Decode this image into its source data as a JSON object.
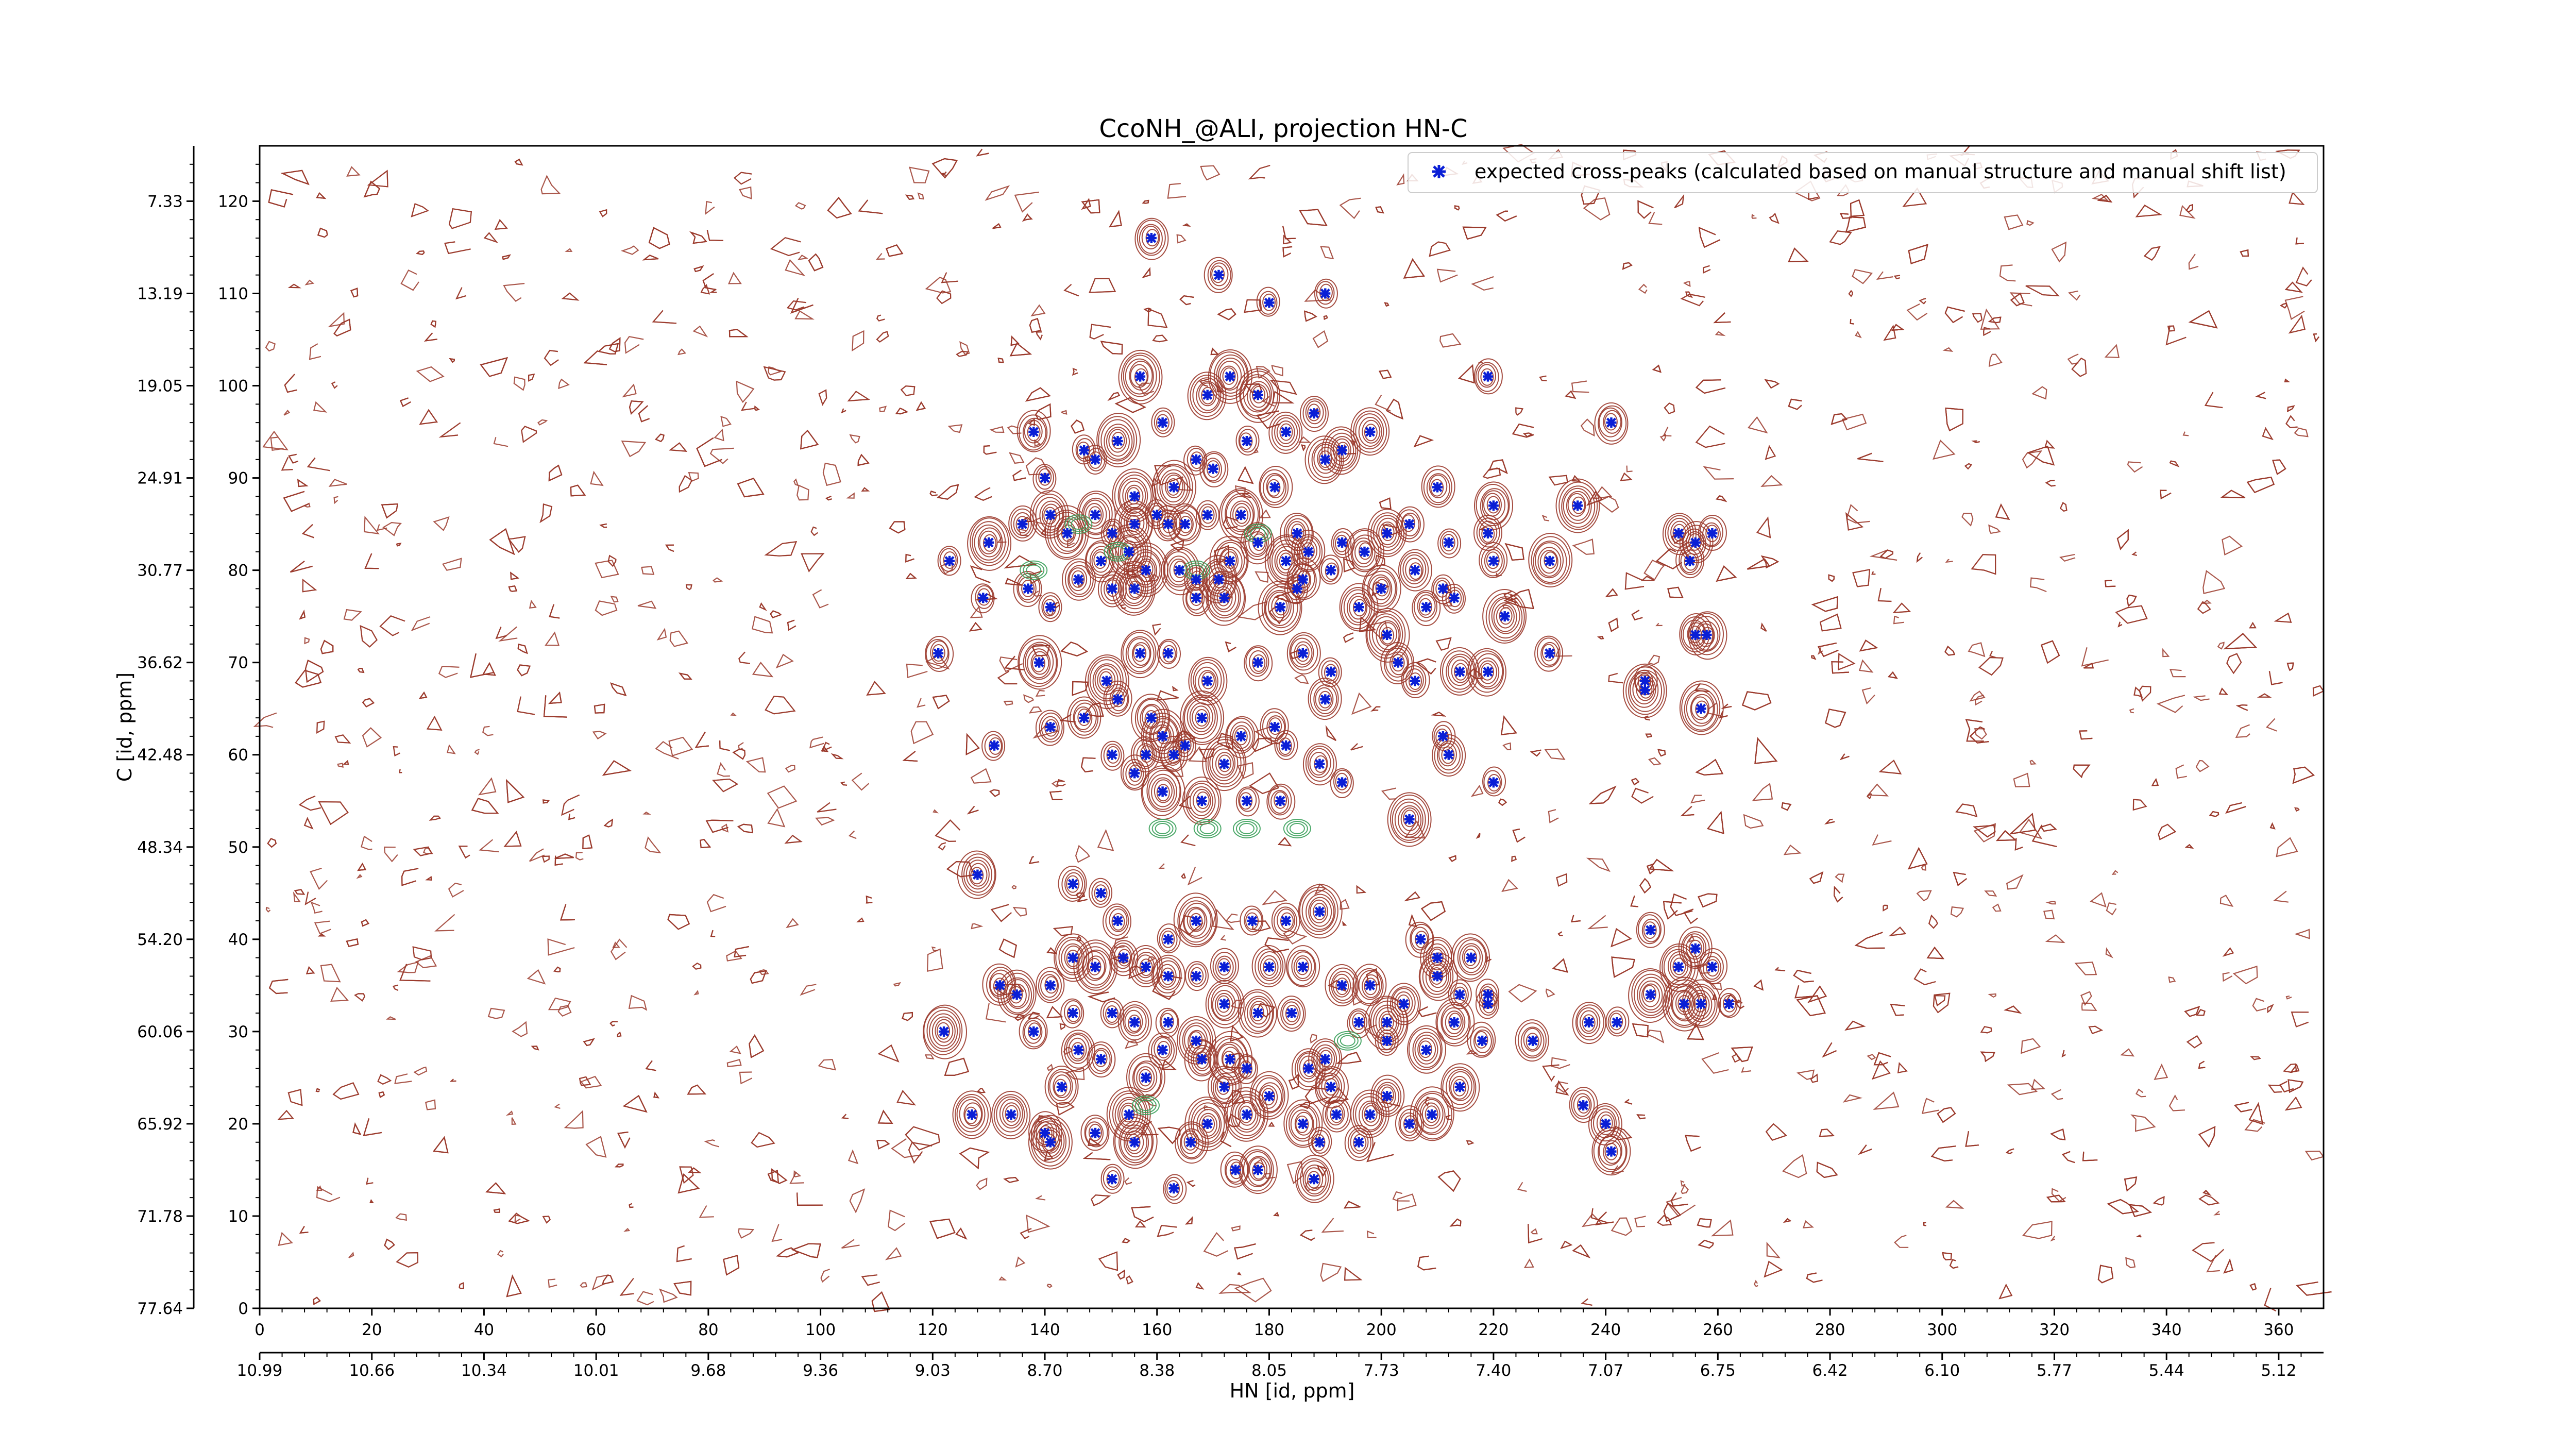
{
  "chart_data": {
    "type": "scatter",
    "title": "CcoNH_@ALI, projection HN-C",
    "xlabel": "HN [id, ppm]",
    "ylabel": "C [id, ppm]",
    "xlim": [
      0,
      368
    ],
    "ylim": [
      0,
      126
    ],
    "x_ticks_index": [
      "0",
      "20",
      "40",
      "60",
      "80",
      "100",
      "120",
      "140",
      "160",
      "180",
      "200",
      "220",
      "240",
      "260",
      "280",
      "300",
      "320",
      "340",
      "360"
    ],
    "x_ticks_ppm": [
      "10.99",
      "10.66",
      "10.34",
      "10.01",
      "9.68",
      "9.36",
      "9.03",
      "8.70",
      "8.38",
      "8.05",
      "7.73",
      "7.40",
      "7.07",
      "6.75",
      "6.42",
      "6.10",
      "5.77",
      "5.44",
      "5.12"
    ],
    "y_ticks_index": [
      "0",
      "10",
      "20",
      "30",
      "40",
      "50",
      "60",
      "70",
      "80",
      "90",
      "100",
      "110",
      "120"
    ],
    "y_ticks_ppm": [
      "77.64",
      "71.78",
      "65.92",
      "60.06",
      "54.20",
      "48.34",
      "42.48",
      "36.62",
      "30.77",
      "24.91",
      "19.05",
      "13.19",
      "7.33"
    ],
    "legend": {
      "placement": "top-right",
      "label": "expected cross-peaks (calculated based on manual structure and manual shift list)"
    },
    "colors": {
      "peaks": "#0a1fd6",
      "contour_positive": "#9b3a2c",
      "contour_negative": "#3aa05a"
    },
    "series": [
      {
        "name": "expected cross-peaks (calculated based on manual structure and manual shift list)",
        "points": [
          [
            159,
            116
          ],
          [
            171,
            112
          ],
          [
            180,
            109
          ],
          [
            190,
            110
          ],
          [
            157,
            101
          ],
          [
            169,
            99
          ],
          [
            173,
            101
          ],
          [
            178,
            99
          ],
          [
            219,
            101
          ],
          [
            241,
            96
          ],
          [
            138,
            95
          ],
          [
            147,
            93
          ],
          [
            153,
            94
          ],
          [
            161,
            96
          ],
          [
            167,
            92
          ],
          [
            176,
            94
          ],
          [
            183,
            95
          ],
          [
            188,
            97
          ],
          [
            193,
            93
          ],
          [
            198,
            95
          ],
          [
            140,
            90
          ],
          [
            149,
            92
          ],
          [
            156,
            88
          ],
          [
            163,
            89
          ],
          [
            170,
            91
          ],
          [
            181,
            89
          ],
          [
            190,
            92
          ],
          [
            210,
            89
          ],
          [
            220,
            87
          ],
          [
            235,
            87
          ],
          [
            141,
            86
          ],
          [
            149,
            86
          ],
          [
            152,
            84
          ],
          [
            156,
            85
          ],
          [
            160,
            86
          ],
          [
            162,
            85
          ],
          [
            165,
            85
          ],
          [
            169,
            86
          ],
          [
            175,
            86
          ],
          [
            178,
            83
          ],
          [
            185,
            84
          ],
          [
            187,
            82
          ],
          [
            193,
            83
          ],
          [
            197,
            82
          ],
          [
            201,
            84
          ],
          [
            205,
            85
          ],
          [
            212,
            83
          ],
          [
            219,
            84
          ],
          [
            253,
            84
          ],
          [
            256,
            83
          ],
          [
            259,
            84
          ],
          [
            130,
            83
          ],
          [
            136,
            85
          ],
          [
            144,
            84
          ],
          [
            150,
            81
          ],
          [
            155,
            82
          ],
          [
            158,
            80
          ],
          [
            164,
            80
          ],
          [
            167,
            79
          ],
          [
            171,
            79
          ],
          [
            173,
            81
          ],
          [
            183,
            81
          ],
          [
            186,
            79
          ],
          [
            191,
            80
          ],
          [
            200,
            78
          ],
          [
            206,
            80
          ],
          [
            211,
            78
          ],
          [
            220,
            81
          ],
          [
            230,
            81
          ],
          [
            255,
            81
          ],
          [
            123,
            81
          ],
          [
            129,
            77
          ],
          [
            137,
            78
          ],
          [
            141,
            76
          ],
          [
            146,
            79
          ],
          [
            152,
            78
          ],
          [
            156,
            78
          ],
          [
            167,
            77
          ],
          [
            172,
            77
          ],
          [
            182,
            76
          ],
          [
            185,
            78
          ],
          [
            196,
            76
          ],
          [
            201,
            73
          ],
          [
            208,
            76
          ],
          [
            213,
            77
          ],
          [
            222,
            75
          ],
          [
            256,
            73
          ],
          [
            258,
            73
          ],
          [
            121,
            71
          ],
          [
            139,
            70
          ],
          [
            151,
            68
          ],
          [
            157,
            71
          ],
          [
            162,
            71
          ],
          [
            169,
            68
          ],
          [
            178,
            70
          ],
          [
            186,
            71
          ],
          [
            191,
            69
          ],
          [
            203,
            70
          ],
          [
            206,
            68
          ],
          [
            214,
            69
          ],
          [
            219,
            69
          ],
          [
            230,
            71
          ],
          [
            247,
            67
          ],
          [
            247,
            68
          ],
          [
            257,
            65
          ],
          [
            147,
            64
          ],
          [
            153,
            66
          ],
          [
            159,
            64
          ],
          [
            161,
            62
          ],
          [
            165,
            61
          ],
          [
            168,
            64
          ],
          [
            175,
            62
          ],
          [
            181,
            63
          ],
          [
            190,
            66
          ],
          [
            152,
            60
          ],
          [
            156,
            58
          ],
          [
            158,
            60
          ],
          [
            163,
            60
          ],
          [
            172,
            59
          ],
          [
            183,
            61
          ],
          [
            189,
            59
          ],
          [
            211,
            62
          ],
          [
            212,
            60
          ],
          [
            220,
            57
          ],
          [
            131,
            61
          ],
          [
            141,
            63
          ],
          [
            161,
            56
          ],
          [
            168,
            55
          ],
          [
            176,
            55
          ],
          [
            182,
            55
          ],
          [
            193,
            57
          ],
          [
            205,
            53
          ],
          [
            145,
            46
          ],
          [
            150,
            45
          ],
          [
            128,
            47
          ],
          [
            153,
            42
          ],
          [
            162,
            40
          ],
          [
            167,
            42
          ],
          [
            177,
            42
          ],
          [
            183,
            42
          ],
          [
            189,
            43
          ],
          [
            207,
            40
          ],
          [
            210,
            38
          ],
          [
            216,
            38
          ],
          [
            248,
            41
          ],
          [
            253,
            37
          ],
          [
            256,
            39
          ],
          [
            259,
            37
          ],
          [
            145,
            38
          ],
          [
            149,
            37
          ],
          [
            154,
            38
          ],
          [
            158,
            37
          ],
          [
            162,
            36
          ],
          [
            167,
            36
          ],
          [
            172,
            37
          ],
          [
            180,
            37
          ],
          [
            186,
            37
          ],
          [
            193,
            35
          ],
          [
            198,
            35
          ],
          [
            204,
            33
          ],
          [
            210,
            36
          ],
          [
            214,
            34
          ],
          [
            219,
            34
          ],
          [
            248,
            34
          ],
          [
            254,
            33
          ],
          [
            257,
            33
          ],
          [
            262,
            33
          ],
          [
            132,
            35
          ],
          [
            135,
            34
          ],
          [
            141,
            35
          ],
          [
            145,
            32
          ],
          [
            152,
            32
          ],
          [
            156,
            31
          ],
          [
            162,
            31
          ],
          [
            167,
            29
          ],
          [
            172,
            33
          ],
          [
            178,
            32
          ],
          [
            184,
            32
          ],
          [
            196,
            31
          ],
          [
            201,
            31
          ],
          [
            213,
            31
          ],
          [
            219,
            33
          ],
          [
            237,
            31
          ],
          [
            242,
            31
          ],
          [
            122,
            30
          ],
          [
            138,
            30
          ],
          [
            146,
            28
          ],
          [
            150,
            27
          ],
          [
            161,
            28
          ],
          [
            168,
            27
          ],
          [
            173,
            27
          ],
          [
            176,
            26
          ],
          [
            187,
            26
          ],
          [
            190,
            27
          ],
          [
            201,
            29
          ],
          [
            208,
            28
          ],
          [
            218,
            29
          ],
          [
            227,
            29
          ],
          [
            143,
            24
          ],
          [
            158,
            25
          ],
          [
            172,
            24
          ],
          [
            180,
            23
          ],
          [
            191,
            24
          ],
          [
            201,
            23
          ],
          [
            214,
            24
          ],
          [
            127,
            21
          ],
          [
            134,
            21
          ],
          [
            140,
            19
          ],
          [
            149,
            19
          ],
          [
            155,
            21
          ],
          [
            169,
            20
          ],
          [
            176,
            21
          ],
          [
            186,
            20
          ],
          [
            192,
            21
          ],
          [
            198,
            21
          ],
          [
            209,
            21
          ],
          [
            236,
            22
          ],
          [
            240,
            20
          ],
          [
            141,
            18
          ],
          [
            156,
            18
          ],
          [
            166,
            18
          ],
          [
            189,
            18
          ],
          [
            196,
            18
          ],
          [
            241,
            17
          ],
          [
            152,
            14
          ],
          [
            163,
            13
          ],
          [
            174,
            15
          ],
          [
            178,
            15
          ],
          [
            188,
            14
          ],
          [
            205,
            20
          ]
        ]
      }
    ]
  }
}
